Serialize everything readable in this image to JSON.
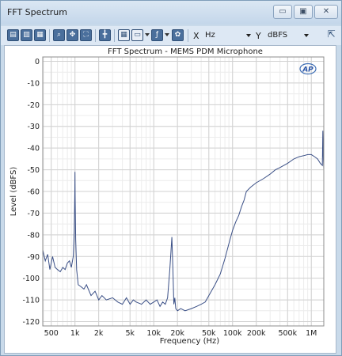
{
  "window": {
    "title": "FFT Spectrum",
    "min_glyph": "▭",
    "max_glyph": "▣",
    "close_glyph": "✕"
  },
  "toolbar": {
    "x_label": "X",
    "x_unit": "Hz",
    "y_label": "Y",
    "y_unit": "dBFS",
    "icons": [
      "save-icon",
      "copy-icon",
      "print-icon",
      "zoom-icon",
      "pan-icon",
      "fit-icon",
      "cursor-icon",
      "table-icon",
      "legend-icon",
      "function-icon",
      "settings-icon",
      "undock-icon"
    ]
  },
  "chart_data": {
    "type": "line",
    "title": "FFT Spectrum - MEMS PDM Microphone",
    "xlabel": "Frequency (Hz)",
    "ylabel": "Level (dBFS)",
    "x_scale": "log",
    "xlim": [
      390,
      1440000
    ],
    "ylim": [
      -122,
      2
    ],
    "x_ticks": [
      500,
      1000,
      2000,
      5000,
      10000,
      20000,
      50000,
      100000,
      200000,
      500000,
      1000000
    ],
    "x_tick_labels": [
      "500",
      "1k",
      "2k",
      "5k",
      "10k",
      "20k",
      "50k",
      "100k",
      "200k",
      "500k",
      "1M"
    ],
    "y_ticks": [
      0,
      -10,
      -20,
      -30,
      -40,
      -50,
      -60,
      -70,
      -80,
      -90,
      -100,
      -110,
      -120
    ],
    "y_tick_labels": [
      "0",
      "-10",
      "-20",
      "-30",
      "-40",
      "-50",
      "-60",
      "-70",
      "-80",
      "-90",
      "-100",
      "-110",
      "-120"
    ],
    "grid": true,
    "logo_text": "AP",
    "series": [
      {
        "color": "#3a4f86",
        "x": [
          390,
          420,
          450,
          480,
          520,
          560,
          600,
          650,
          700,
          750,
          800,
          850,
          900,
          950,
          980,
          995,
          1000,
          1005,
          1020,
          1050,
          1100,
          1200,
          1300,
          1400,
          1600,
          1800,
          2000,
          2200,
          2500,
          3000,
          3500,
          4000,
          4500,
          5000,
          5500,
          6000,
          7000,
          8000,
          9000,
          10000,
          11000,
          12000,
          13000,
          14000,
          15000,
          16000,
          16500,
          17000,
          17500,
          18000,
          18500,
          19000,
          20000,
          22000,
          25000,
          30000,
          35000,
          40000,
          45000,
          50000,
          60000,
          70000,
          80000,
          90000,
          100000,
          110000,
          120000,
          130000,
          140000,
          150000,
          170000,
          200000,
          250000,
          300000,
          350000,
          400000,
          500000,
          600000,
          700000,
          800000,
          900000,
          1000000,
          1100000,
          1200000,
          1300000,
          1380000,
          1400000,
          1420000,
          1440000
        ],
        "y": [
          -87,
          -92,
          -89,
          -96,
          -90,
          -95,
          -96,
          -97,
          -95,
          -96,
          -93,
          -92,
          -95,
          -90,
          -78,
          -60,
          -51,
          -62,
          -82,
          -96,
          -103,
          -104,
          -105,
          -103,
          -108,
          -106,
          -110,
          -108,
          -110,
          -109,
          -111,
          -112,
          -109,
          -112,
          -110,
          -111,
          -112,
          -110,
          -112,
          -111,
          -110,
          -113,
          -111,
          -112,
          -109,
          -96,
          -88,
          -81,
          -96,
          -112,
          -109,
          -114,
          -115,
          -114,
          -115,
          -114,
          -113,
          -112,
          -111,
          -108,
          -103,
          -98,
          -91,
          -84,
          -78,
          -74,
          -71,
          -67,
          -64,
          -60,
          -58,
          -56,
          -54,
          -52,
          -50,
          -49,
          -47,
          -45,
          -44,
          -43.5,
          -43,
          -43,
          -44,
          -45,
          -47,
          -48,
          -32,
          -44,
          -50
        ]
      }
    ]
  }
}
